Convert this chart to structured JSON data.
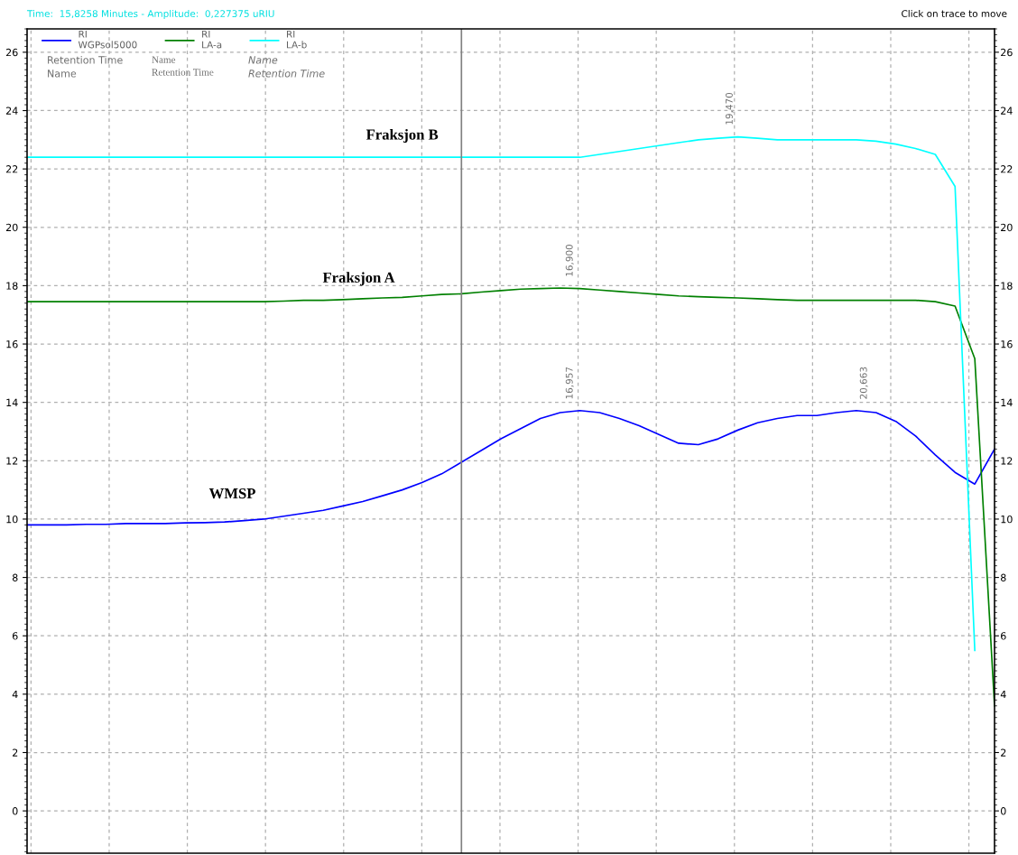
{
  "chart_data": {
    "type": "line",
    "title": "Time:  15,8258 Minutes - Amplitude:  0,227375 uRIU",
    "categories": [
      null,
      null,
      null,
      null,
      null,
      null,
      null,
      null,
      null,
      null,
      null,
      null,
      null,
      null,
      null,
      null,
      null,
      null,
      null,
      null,
      null,
      null,
      null,
      null,
      null,
      null,
      null,
      null,
      null,
      null,
      null,
      null,
      null,
      null,
      null,
      null,
      null,
      null,
      null,
      null,
      null,
      null,
      null,
      null,
      null,
      null,
      null,
      null,
      null,
      null
    ],
    "series": [
      {
        "name": "RI\nWGPsol5000",
        "color": "#0000ff",
        "values": [
          9.8,
          9.8,
          9.8,
          9.82,
          9.82,
          9.85,
          9.85,
          9.85,
          9.87,
          9.88,
          9.9,
          9.95,
          10.0,
          10.1,
          10.2,
          10.3,
          10.45,
          10.6,
          10.8,
          11.0,
          11.25,
          11.55,
          11.95,
          12.35,
          12.75,
          13.1,
          13.45,
          13.65,
          13.72,
          13.65,
          13.45,
          13.2,
          12.9,
          12.6,
          12.55,
          12.75,
          13.05,
          13.3,
          13.45,
          13.55,
          13.55,
          13.65,
          13.72,
          13.65,
          13.35,
          12.85,
          12.2,
          11.6,
          11.2,
          12.4
        ]
      },
      {
        "name": "RI\nLA-a",
        "color": "#008000",
        "values": [
          17.45,
          17.45,
          17.45,
          17.45,
          17.45,
          17.45,
          17.45,
          17.45,
          17.45,
          17.45,
          17.45,
          17.45,
          17.45,
          17.47,
          17.5,
          17.5,
          17.52,
          17.55,
          17.58,
          17.6,
          17.65,
          17.7,
          17.72,
          17.78,
          17.83,
          17.88,
          17.9,
          17.92,
          17.9,
          17.85,
          17.8,
          17.75,
          17.7,
          17.65,
          17.62,
          17.6,
          17.58,
          17.55,
          17.52,
          17.5,
          17.5,
          17.5,
          17.5,
          17.5,
          17.5,
          17.5,
          17.45,
          17.3,
          15.5,
          3.6
        ]
      },
      {
        "name": "RI\nLA-b",
        "color": "#00ffff",
        "values": [
          22.4,
          22.4,
          22.4,
          22.4,
          22.4,
          22.4,
          22.4,
          22.4,
          22.4,
          22.4,
          22.4,
          22.4,
          22.4,
          22.4,
          22.4,
          22.4,
          22.4,
          22.4,
          22.4,
          22.4,
          22.4,
          22.4,
          22.4,
          22.4,
          22.4,
          22.4,
          22.4,
          22.4,
          22.4,
          22.5,
          22.6,
          22.7,
          22.8,
          22.9,
          23.0,
          23.05,
          23.1,
          23.05,
          23.0,
          23.0,
          23.0,
          23.0,
          23.0,
          22.95,
          22.85,
          22.7,
          22.5,
          21.4,
          5.5,
          null
        ]
      }
    ],
    "ylim": [
      -1.45,
      26.8
    ],
    "yticks": [
      0,
      2,
      4,
      6,
      8,
      10,
      12,
      14,
      16,
      18,
      20,
      22,
      24,
      26
    ],
    "y2lim": [
      -1.45,
      26.8
    ],
    "y2ticks": [
      0,
      2,
      4,
      6,
      8,
      10,
      12,
      14,
      16,
      18,
      20,
      22,
      24,
      26
    ],
    "tick_labels": "y",
    "grid": true,
    "legend": "top left",
    "annotations": [
      "Fraksjon B",
      "Fraksjon A",
      "WMSP",
      "16,900",
      "16,957",
      "19,470",
      "20,663",
      "Retention Time\nName",
      "Name\nRetention Time",
      "Name\nRetention Time",
      "Click on trace to move"
    ]
  }
}
